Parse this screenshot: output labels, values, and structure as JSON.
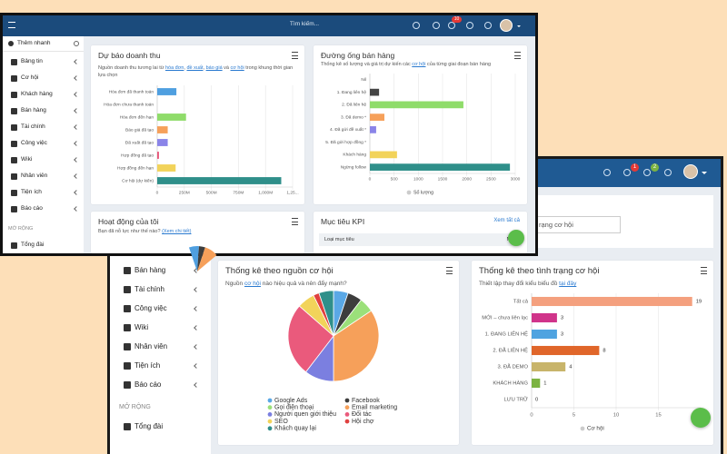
{
  "front": {
    "search_placeholder": "Tìm kiếm...",
    "notification_badge": "10",
    "quick_add": "Thêm nhanh",
    "menu": [
      "Bảng tin",
      "Cơ hội",
      "Khách hàng",
      "Bán hàng",
      "Tài chính",
      "Công việc",
      "Wiki",
      "Nhân viên",
      "Tiện ích",
      "Báo cáo"
    ],
    "section_label": "MỞ RỘNG",
    "extra_menu": [
      "Tổng đài"
    ],
    "revenue": {
      "title": "Dự báo doanh thu",
      "subtitle": [
        "Nguồn doanh thu tương lai từ ",
        "hóa đơn",
        ", ",
        "đề xuất",
        ", ",
        "báo giá",
        " và ",
        "cơ hội",
        " trong khung thời gian lựa chọn"
      ],
      "chart": {
        "type": "bar",
        "categories": [
          "Hóa đơn đã thanh toán",
          "Hóa đơn chưa thanh toán",
          "Hóa đơn đến hạn",
          "Báo giá đã tạo",
          "Đã xuất đã tạo",
          "Hợp đồng đã tạo",
          "Hợp đồng đến hạn",
          "Cơ hội (dự kiến)"
        ],
        "values": [
          177,
          0,
          266,
          97,
          97,
          16,
          170,
          1145
        ],
        "colors": [
          "#4f9fe0",
          "#4f9fe0",
          "#8fdc6a",
          "#f6a05a",
          "#8a84e8",
          "#e6577a",
          "#f2d35a",
          "#2f8f8a"
        ],
        "xlim": [
          0,
          1250
        ],
        "xticks": [
          0,
          {
            "value": 250,
            "label": "250M"
          },
          {
            "value": 500,
            "label": "500M"
          },
          {
            "value": 750,
            "label": "750M"
          },
          {
            "value": 1000,
            "label": "1,000M"
          },
          {
            "value": 1250,
            "label": "1,25..."
          }
        ]
      }
    },
    "pipeline": {
      "title": "Đường ống bán hàng",
      "subtitle": [
        "Thống kê số lượng và giá trị dự kiến các ",
        "cơ hội",
        " của từng giai đoạn bán hàng"
      ],
      "chart": {
        "type": "bar",
        "categories": [
          "Nil",
          "1. Đang liên hệ",
          "2. Đã liên hệ",
          "3. Đã demo *",
          "4. Đã gửi đề xuất *",
          "5. Đã gửi hợp đồng *",
          "Khách hàng",
          "Ngừng follow"
        ],
        "values": [
          0,
          190,
          1930,
          300,
          130,
          0,
          560,
          2890
        ],
        "colors": [
          "#444444",
          "#444444",
          "#8fdc6a",
          "#f6a05a",
          "#8a84e8",
          "#e6577a",
          "#f2d35a",
          "#2f8f8a"
        ],
        "xlim": [
          0,
          3000
        ],
        "xticks": [
          0,
          500,
          1000,
          1500,
          2000,
          2500,
          3000
        ],
        "legend": "Số lượng"
      }
    },
    "activity": {
      "title": "Hoạt động của tôi",
      "subtitle": [
        "Bạn đã nỗ lực như thế nào? ",
        "(Xem chi tiết)"
      ]
    },
    "kpi": {
      "title": "Mục tiêu KPI",
      "link": "Xem tất cả",
      "columns": [
        "Loại mục tiêu",
        "Mục"
      ]
    }
  },
  "back": {
    "badges": [
      "1",
      "2"
    ],
    "filter_value": "rạng cơ hội",
    "menu": [
      "Bán hàng",
      "Tài chính",
      "Công việc",
      "Wiki",
      "Nhân viên",
      "Tiện ích",
      "Báo cáo"
    ],
    "section_label": "MỞ RỘNG",
    "extra_menu": [
      "Tổng đài"
    ],
    "sources": {
      "title": "Thống kê theo nguồn cơ hội",
      "subtitle": [
        "Nguồn ",
        "cơ hội",
        " nào hiệu quả và nên đẩy mạnh?"
      ],
      "chart": {
        "type": "pie",
        "categories": [
          "Google Ads",
          "Facebook",
          "Gọi điện thoại",
          "Email marketing",
          "Người quen giới thiệu",
          "Đối tác",
          "SEO",
          "Hội chợ",
          "Khách quay lại"
        ],
        "values": [
          5,
          5,
          5,
          33,
          10,
          25,
          6,
          2,
          5
        ],
        "colors": [
          "#5aa8e6",
          "#3d3d3d",
          "#9be07a",
          "#f6a05a",
          "#7b7fe0",
          "#ea5a7c",
          "#f2d35a",
          "#e0413f",
          "#2f8f8a"
        ]
      }
    },
    "status": {
      "title": "Thống kê theo tình trạng cơ hội",
      "subtitle": [
        "Thiết lập thay đổi kiểu biểu đồ ",
        "tại đây"
      ],
      "chart": {
        "type": "bar",
        "categories": [
          "Tất cả",
          "MỚI – chưa liên lạc",
          "1. ĐANG LIÊN HỆ",
          "2. ĐÃ LIÊN HỆ",
          "3. ĐÃ DEMO",
          "KHÁCH HÀNG",
          "LƯU TRỮ"
        ],
        "values": [
          19,
          3,
          3,
          8,
          4,
          1,
          0
        ],
        "colors": [
          "#f4a07e",
          "#d0348a",
          "#4fa3e0",
          "#e0662a",
          "#c8b46a",
          "#7cb342",
          "#9e9e9e"
        ],
        "xlim": [
          0,
          20
        ],
        "xticks": [
          0,
          5,
          10,
          15
        ],
        "legend": "Cơ hội",
        "value_labels_shown": true
      }
    }
  }
}
